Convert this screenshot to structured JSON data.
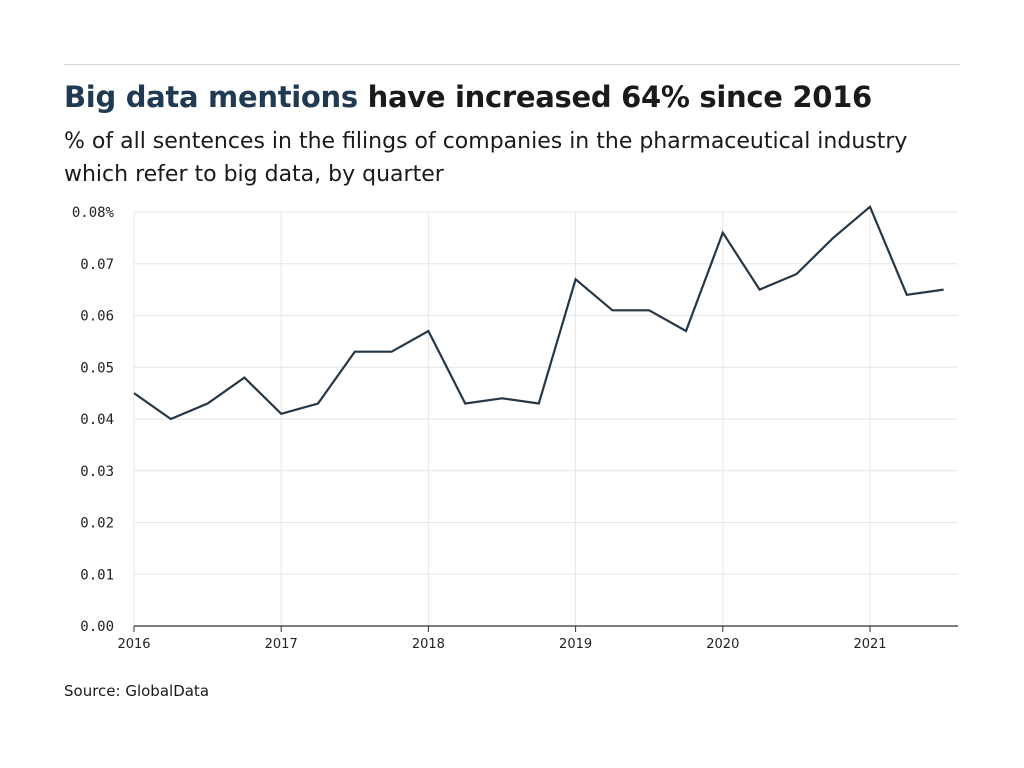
{
  "title": {
    "highlight": "Big data mentions",
    "rest": " have increased 64% since 2016"
  },
  "subtitle": "% of all sentences in the filings of companies in the pharmaceutical industry which refer to big data, by quarter",
  "source": "Source: GlobalData",
  "colors": {
    "line": "#253746",
    "highlight": "#1f3a52",
    "grid": "#e6e6e6",
    "axis": "#333333"
  },
  "chart_data": {
    "type": "line",
    "title": "Big data mentions have increased 64% since 2016",
    "xlabel": "",
    "ylabel": "",
    "x": [
      "2016 Q1",
      "2016 Q2",
      "2016 Q3",
      "2016 Q4",
      "2017 Q1",
      "2017 Q2",
      "2017 Q3",
      "2017 Q4",
      "2018 Q1",
      "2018 Q2",
      "2018 Q3",
      "2018 Q4",
      "2019 Q1",
      "2019 Q2",
      "2019 Q3",
      "2019 Q4",
      "2020 Q1",
      "2020 Q2",
      "2020 Q3",
      "2020 Q4",
      "2021 Q1",
      "2021 Q2",
      "2021 Q3"
    ],
    "values": [
      0.045,
      0.04,
      0.043,
      0.048,
      0.041,
      0.043,
      0.053,
      0.053,
      0.057,
      0.043,
      0.044,
      0.043,
      0.067,
      0.061,
      0.061,
      0.057,
      0.076,
      0.065,
      0.068,
      0.075,
      0.081,
      0.064,
      0.065
    ],
    "ylim": [
      0,
      0.08
    ],
    "yticks": [
      "0.00",
      "0.01",
      "0.02",
      "0.03",
      "0.04",
      "0.05",
      "0.06",
      "0.07",
      "0.08%"
    ],
    "xticks": [
      "2016",
      "2017",
      "2018",
      "2019",
      "2020",
      "2021"
    ],
    "grid": true,
    "legend": "none"
  }
}
